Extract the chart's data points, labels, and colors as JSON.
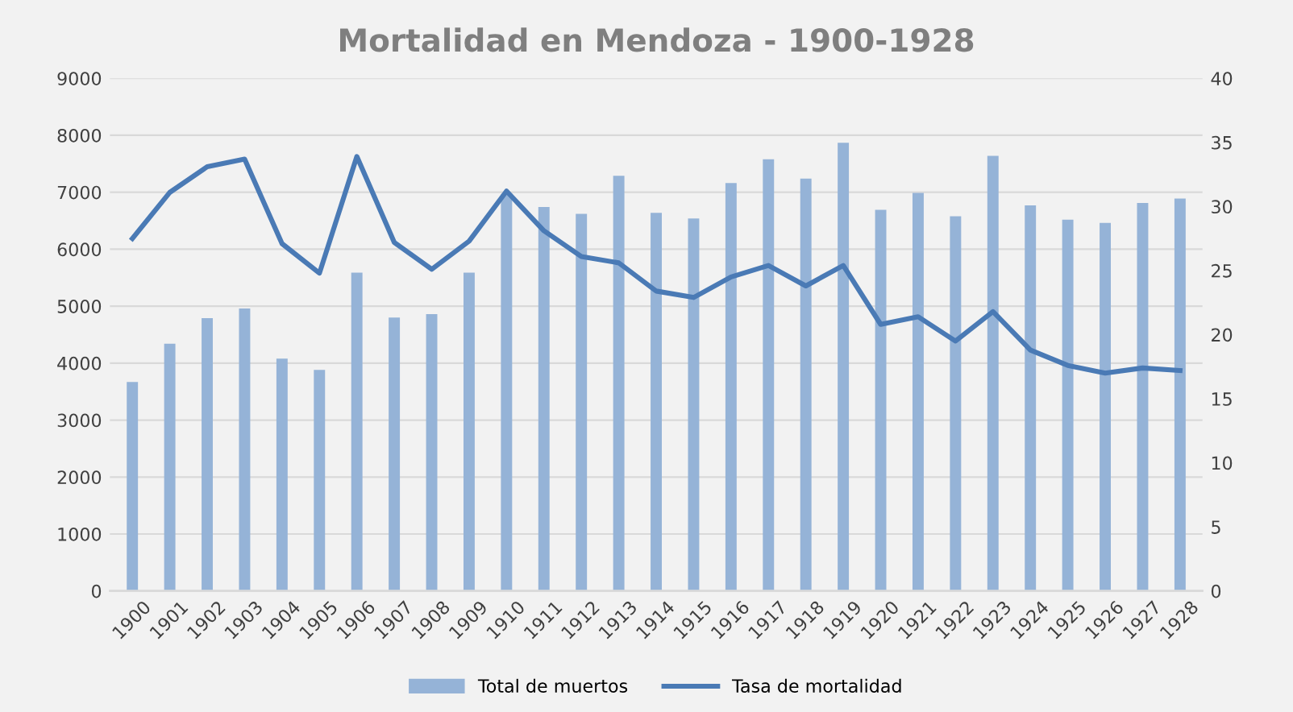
{
  "chart_data": {
    "type": "bar",
    "title": "Mortalidad en Mendoza - 1900-1928",
    "categories": [
      "1900",
      "1901",
      "1902",
      "1903",
      "1904",
      "1905",
      "1906",
      "1907",
      "1908",
      "1909",
      "1910",
      "1911",
      "1912",
      "1913",
      "1914",
      "1915",
      "1916",
      "1917",
      "1918",
      "1919",
      "1920",
      "1921",
      "1922",
      "1923",
      "1924",
      "1925",
      "1926",
      "1927",
      "1928"
    ],
    "series": [
      {
        "name": "Total de muertos",
        "color": "#95b3d7",
        "values": [
          3670,
          4340,
          4790,
          4960,
          4080,
          3880,
          5590,
          4800,
          4860,
          5590,
          6960,
          6740,
          6620,
          7290,
          6640,
          6540,
          7160,
          7580,
          7240,
          7870,
          6690,
          6990,
          6580,
          7640,
          6770,
          6520,
          6460,
          6810,
          6890
        ]
      },
      {
        "name": "Tasa de mortalidad",
        "type": "line",
        "axis": "y2",
        "color": "#4a7ab5",
        "values": [
          27.5,
          31.1,
          33.1,
          33.7,
          27.1,
          24.8,
          33.9,
          27.2,
          25.1,
          27.3,
          31.2,
          28.1,
          26.1,
          25.6,
          23.4,
          22.9,
          24.5,
          25.4,
          23.8,
          25.4,
          20.8,
          21.4,
          19.5,
          21.8,
          18.8,
          17.6,
          17.0,
          17.4,
          17.2
        ]
      }
    ],
    "ylim": [
      0,
      9000
    ],
    "yticks": [
      0,
      1000,
      2000,
      3000,
      4000,
      5000,
      6000,
      7000,
      8000,
      9000
    ],
    "y2lim": [
      0,
      40
    ],
    "y2ticks": [
      0,
      5,
      10,
      15,
      20,
      25,
      30,
      35,
      40
    ],
    "grid": "y",
    "legend": "bottom",
    "marker": "none",
    "line_style": "solid"
  }
}
